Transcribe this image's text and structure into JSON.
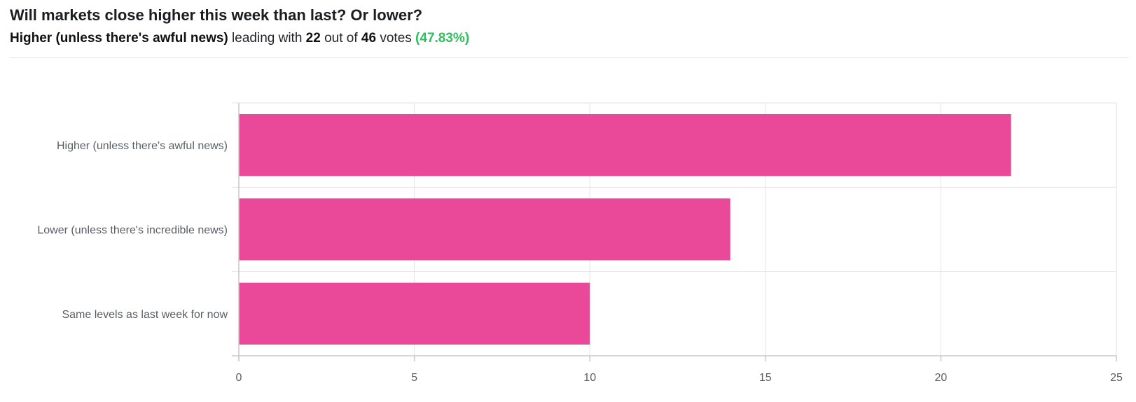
{
  "header": {
    "title": "Will markets close higher this week than last? Or lower?",
    "leader": "Higher (unless there's awful news)",
    "leading_with": "leading with",
    "leader_votes": "22",
    "out_of": "out of",
    "total_votes": "46",
    "votes_word": "votes",
    "leader_pct": "(47.83%)"
  },
  "colors": {
    "bar": "#ea4899",
    "grid": "#e3e3e3",
    "axis": "#c9c9c9",
    "pct": "#2fbf5e"
  },
  "chart_data": {
    "type": "bar",
    "orientation": "horizontal",
    "categories": [
      "Higher (unless there's awful news)",
      "Lower (unless there's incredible news)",
      "Same levels as last week for now"
    ],
    "values": [
      22,
      14,
      10
    ],
    "xlim": [
      0,
      25
    ],
    "xticks": [
      0,
      5,
      10,
      15,
      20,
      25
    ],
    "grid": true,
    "title": "",
    "xlabel": "",
    "ylabel": ""
  }
}
